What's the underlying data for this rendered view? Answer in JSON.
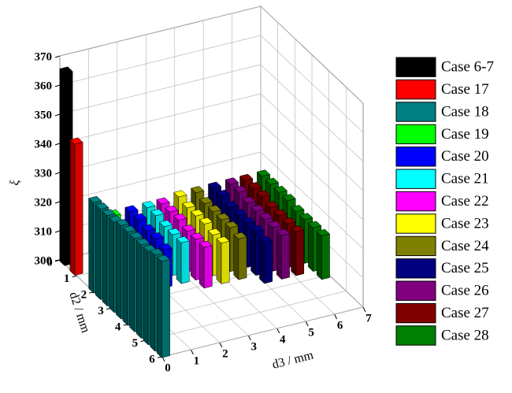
{
  "chart_data": {
    "type": "bar3d",
    "y_label": "ξ",
    "x_label": "d3 / mm",
    "z_label": "d2 / mm",
    "ylim": [
      300,
      370
    ],
    "yticks": [
      300,
      310,
      320,
      330,
      340,
      350,
      360,
      370
    ],
    "xlim": [
      0,
      7
    ],
    "xticks": [
      0,
      1,
      2,
      3,
      4,
      5,
      6,
      7
    ],
    "zlim": [
      0,
      6
    ],
    "zticks": [
      0,
      1,
      2,
      3,
      4,
      5,
      6
    ],
    "grid": true,
    "legend": "right",
    "series": [
      {
        "name": "Case 6-7",
        "color": "#000000",
        "d3": 0.1,
        "d2": [
          0.2
        ],
        "values": [
          366
        ]
      },
      {
        "name": "Case 17",
        "color": "#ff0000",
        "d3": 0.1,
        "d2": [
          0.8
        ],
        "values": [
          345
        ]
      },
      {
        "name": "Case 18",
        "color": "#008080",
        "d3": 0.1,
        "d2": [
          1.9,
          2.3,
          2.7,
          3.1,
          3.5,
          3.9,
          4.3,
          4.7,
          5.1,
          5.5,
          5.9
        ],
        "values": [
          331,
          331,
          331,
          331,
          332,
          332,
          332,
          332,
          332,
          333,
          333
        ]
      },
      {
        "name": "Case 19",
        "color": "#00ff00",
        "d3": 1.6,
        "d2": [
          0.5,
          1,
          1.5,
          2
        ],
        "values": [
          315,
          314,
          314,
          313
        ]
      },
      {
        "name": "Case 20",
        "color": "#0000ff",
        "d3": 2.2,
        "d2": [
          0.5,
          1,
          1.5,
          2,
          2.5
        ],
        "values": [
          315,
          315,
          314,
          314,
          313
        ]
      },
      {
        "name": "Case 21",
        "color": "#00ffff",
        "d3": 2.8,
        "d2": [
          0.5,
          1,
          1.5,
          2,
          2.5
        ],
        "values": [
          315,
          315,
          314,
          314,
          314
        ]
      },
      {
        "name": "Case 22",
        "color": "#ff00ff",
        "d3": 3.3,
        "d2": [
          0.5,
          1,
          1.5,
          2,
          2.5,
          3
        ],
        "values": [
          315,
          315,
          315,
          314,
          314,
          314
        ]
      },
      {
        "name": "Case 23",
        "color": "#ffff00",
        "d3": 3.9,
        "d2": [
          0.5,
          1,
          1.5,
          2,
          2.5,
          3
        ],
        "values": [
          316,
          315,
          315,
          315,
          314,
          314
        ]
      },
      {
        "name": "Case 24",
        "color": "#808000",
        "d3": 4.5,
        "d2": [
          0.5,
          1,
          1.5,
          2,
          2.5,
          3
        ],
        "values": [
          316,
          315,
          315,
          315,
          315,
          314
        ]
      },
      {
        "name": "Case 25",
        "color": "#000080",
        "d3": 5.1,
        "d2": [
          0.5,
          1,
          1.5,
          2,
          2.5,
          3,
          3.5
        ],
        "values": [
          316,
          316,
          315,
          315,
          315,
          315,
          314
        ]
      },
      {
        "name": "Case 26",
        "color": "#800080",
        "d3": 5.7,
        "d2": [
          0.5,
          1,
          1.5,
          2,
          2.5,
          3,
          3.5
        ],
        "values": [
          316,
          316,
          315,
          315,
          315,
          315,
          315
        ]
      },
      {
        "name": "Case 27",
        "color": "#800000",
        "d3": 6.2,
        "d2": [
          0.5,
          1,
          1.5,
          2,
          2.5,
          3,
          3.5
        ],
        "values": [
          316,
          316,
          316,
          315,
          315,
          315,
          315
        ]
      },
      {
        "name": "Case 28",
        "color": "#008000",
        "d3": 6.8,
        "d2": [
          0.5,
          1,
          1.5,
          2,
          2.5,
          3,
          3.5,
          4
        ],
        "values": [
          316,
          316,
          316,
          316,
          315,
          315,
          315,
          315
        ]
      }
    ]
  }
}
